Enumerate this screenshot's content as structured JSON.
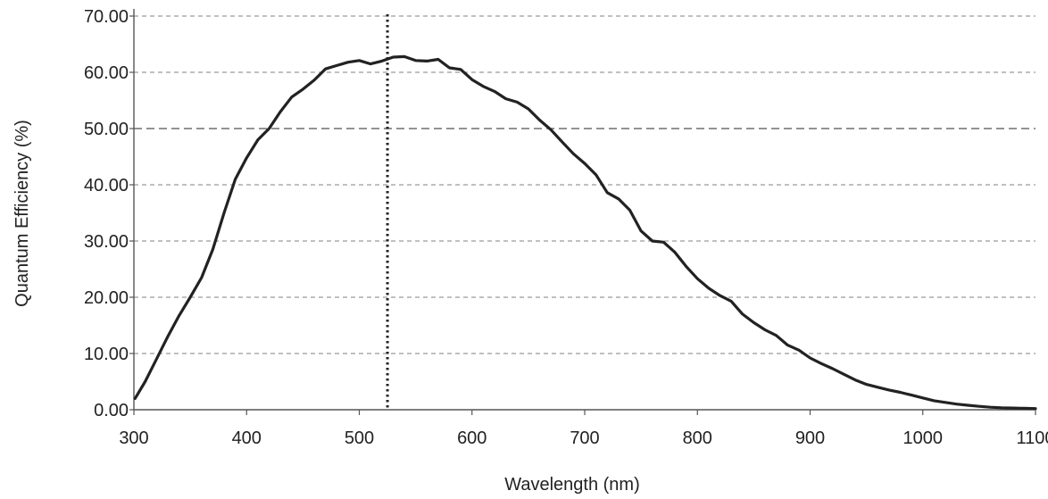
{
  "chart_data": {
    "type": "line",
    "title": "",
    "xlabel": "Wavelength (nm)",
    "ylabel": "Quantum Efficiency (%)",
    "xlim": [
      300,
      1100
    ],
    "ylim": [
      0,
      70
    ],
    "x_ticks": [
      "300",
      "400",
      "500",
      "600",
      "700",
      "800",
      "900",
      "1000",
      "1100"
    ],
    "y_ticks": [
      "0.00",
      "10.00",
      "20.00",
      "30.00",
      "40.00",
      "50.00",
      "60.00",
      "70.00"
    ],
    "grid": "horizontal dashed",
    "reference_line_x": 525,
    "series": [
      {
        "x": [
          301,
          310,
          320,
          330,
          340,
          350,
          360,
          370,
          380,
          390,
          400,
          410,
          420,
          430,
          440,
          450,
          460,
          470,
          480,
          490,
          500,
          510,
          520,
          530,
          540,
          550,
          560,
          570,
          580,
          590,
          600,
          610,
          620,
          630,
          640,
          650,
          660,
          670,
          680,
          690,
          700,
          710,
          720,
          730,
          740,
          750,
          760,
          770,
          780,
          790,
          800,
          810,
          820,
          830,
          840,
          850,
          860,
          870,
          880,
          890,
          900,
          910,
          920,
          930,
          940,
          950,
          960,
          970,
          980,
          990,
          1000,
          1010,
          1020,
          1030,
          1040,
          1050,
          1060,
          1070,
          1080,
          1090,
          1100
        ],
        "values": [
          2.0,
          5.0,
          9.0,
          13.0,
          16.7,
          20.0,
          23.5,
          28.5,
          35.0,
          41.0,
          44.8,
          48.0,
          50.0,
          53.0,
          55.6,
          57.0,
          58.6,
          60.6,
          61.2,
          61.8,
          62.1,
          61.5,
          62.0,
          62.7,
          62.8,
          62.1,
          62.0,
          62.3,
          60.8,
          60.5,
          58.7,
          57.5,
          56.6,
          55.3,
          54.7,
          53.5,
          51.5,
          49.8,
          47.6,
          45.5,
          43.8,
          41.8,
          38.6,
          37.5,
          35.5,
          31.8,
          30.0,
          29.8,
          28.0,
          25.5,
          23.3,
          21.6,
          20.3,
          19.3,
          17.0,
          15.5,
          14.2,
          13.2,
          11.5,
          10.6,
          9.2,
          8.2,
          7.3,
          6.3,
          5.3,
          4.5,
          4.0,
          3.5,
          3.1,
          2.6,
          2.1,
          1.6,
          1.3,
          1.0,
          0.8,
          0.6,
          0.45,
          0.35,
          0.3,
          0.25,
          0.2
        ]
      }
    ],
    "colors": {
      "line": "#222222",
      "grid": "#9a9a9a",
      "axis": "#555555"
    }
  }
}
